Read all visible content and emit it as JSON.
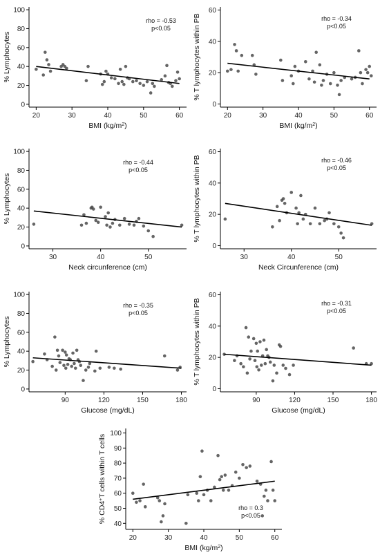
{
  "chart_data": [
    {
      "id": "bmi-lymph",
      "type": "scatter",
      "xlabel": "BMI (kg/m",
      "xlabel_sup": "2",
      "xlabel_end": ")",
      "ylabel": "% Lymphocytes",
      "xlim": [
        18,
        62
      ],
      "ylim": [
        -3,
        103
      ],
      "xticks": [
        20,
        30,
        40,
        50,
        60
      ],
      "yticks": [
        0,
        20,
        40,
        60,
        80,
        100
      ],
      "stat_rho": "rho = -0.53",
      "stat_p": "p<0.05",
      "fit": [
        [
          20,
          40
        ],
        [
          60,
          22
        ]
      ],
      "points": [
        [
          20,
          37
        ],
        [
          22,
          31
        ],
        [
          22.5,
          55
        ],
        [
          23,
          47
        ],
        [
          23.5,
          42
        ],
        [
          24,
          35
        ],
        [
          27,
          40
        ],
        [
          27.5,
          42
        ],
        [
          28,
          40
        ],
        [
          28.5,
          38
        ],
        [
          34,
          25
        ],
        [
          34.5,
          40
        ],
        [
          38,
          32
        ],
        [
          38.5,
          21
        ],
        [
          39,
          24
        ],
        [
          39.5,
          35
        ],
        [
          40,
          32
        ],
        [
          41,
          28
        ],
        [
          42,
          27
        ],
        [
          43,
          22
        ],
        [
          43.5,
          37
        ],
        [
          44,
          24
        ],
        [
          44.5,
          21
        ],
        [
          45,
          40
        ],
        [
          45.5,
          28
        ],
        [
          46,
          27
        ],
        [
          47,
          24
        ],
        [
          48,
          25
        ],
        [
          49,
          22
        ],
        [
          50,
          20
        ],
        [
          51,
          24
        ],
        [
          52,
          12
        ],
        [
          52.5,
          22
        ],
        [
          53,
          19
        ],
        [
          55,
          26
        ],
        [
          56,
          30
        ],
        [
          56.5,
          41
        ],
        [
          57,
          23
        ],
        [
          57.5,
          22
        ],
        [
          58,
          19
        ],
        [
          59,
          25
        ],
        [
          59.5,
          34
        ],
        [
          60,
          27
        ]
      ]
    },
    {
      "id": "bmi-tlymph",
      "type": "scatter",
      "xlabel": "BMI (kg/m",
      "xlabel_sup": "2",
      "xlabel_end": ")",
      "ylabel": "% T lymphocytes within PB",
      "xlim": [
        18,
        62
      ],
      "ylim": [
        -2,
        62
      ],
      "xticks": [
        20,
        30,
        40,
        50,
        60
      ],
      "yticks": [
        0,
        20,
        40,
        60
      ],
      "stat_rho": "rho = -0.34",
      "stat_p": "p<0.05",
      "fit": [
        [
          20,
          26
        ],
        [
          60,
          16
        ]
      ],
      "points": [
        [
          20,
          21
        ],
        [
          21,
          22
        ],
        [
          22,
          38
        ],
        [
          22.5,
          34
        ],
        [
          23,
          21
        ],
        [
          24,
          31
        ],
        [
          27,
          31
        ],
        [
          27.5,
          25
        ],
        [
          28,
          19
        ],
        [
          35,
          28
        ],
        [
          35.5,
          15
        ],
        [
          38,
          18
        ],
        [
          38.5,
          13
        ],
        [
          39,
          24
        ],
        [
          40,
          21
        ],
        [
          42,
          27
        ],
        [
          43,
          16
        ],
        [
          44,
          21
        ],
        [
          44.5,
          14
        ],
        [
          45,
          33
        ],
        [
          46,
          25
        ],
        [
          46.5,
          12
        ],
        [
          47,
          15
        ],
        [
          48,
          19
        ],
        [
          49,
          13
        ],
        [
          50,
          20
        ],
        [
          51,
          12
        ],
        [
          51.5,
          6
        ],
        [
          52,
          15
        ],
        [
          53,
          17
        ],
        [
          55,
          16
        ],
        [
          56,
          17
        ],
        [
          57,
          34
        ],
        [
          57.5,
          20
        ],
        [
          58,
          13
        ],
        [
          59,
          22
        ],
        [
          59.5,
          20
        ],
        [
          60,
          24
        ],
        [
          60.5,
          18
        ]
      ]
    },
    {
      "id": "neck-lymph",
      "type": "scatter",
      "xlabel": "Neck circunference (cm)",
      "ylabel": "% Lymphocytes",
      "xlim": [
        25,
        58
      ],
      "ylim": [
        -3,
        103
      ],
      "xticks": [
        30,
        40,
        50
      ],
      "yticks": [
        0,
        20,
        40,
        60,
        80,
        100
      ],
      "stat_rho": "rho = -0.44",
      "stat_p": "p<0.05",
      "fit": [
        [
          26,
          37
        ],
        [
          57,
          20
        ]
      ],
      "points": [
        [
          26,
          23
        ],
        [
          36,
          22
        ],
        [
          36.5,
          33
        ],
        [
          37,
          24
        ],
        [
          38,
          40
        ],
        [
          38.2,
          41
        ],
        [
          38.5,
          39
        ],
        [
          39,
          27
        ],
        [
          39.5,
          25
        ],
        [
          40,
          41
        ],
        [
          41,
          31
        ],
        [
          41.3,
          22
        ],
        [
          41.6,
          35
        ],
        [
          42,
          20
        ],
        [
          42.5,
          24
        ],
        [
          43,
          28
        ],
        [
          44,
          22
        ],
        [
          45,
          29
        ],
        [
          46,
          23
        ],
        [
          47,
          22
        ],
        [
          47.5,
          26
        ],
        [
          48,
          29
        ],
        [
          49,
          21
        ],
        [
          50,
          16
        ],
        [
          51,
          10
        ],
        [
          57,
          22
        ]
      ]
    },
    {
      "id": "neck-tlymph",
      "type": "scatter",
      "xlabel": "Neck Circunference (cm)",
      "ylabel": "% T lymphocytes within PB",
      "xlim": [
        25,
        58
      ],
      "ylim": [
        -2,
        62
      ],
      "xticks": [
        30,
        40,
        50
      ],
      "yticks": [
        0,
        20,
        40,
        60
      ],
      "stat_rho": "rho = -0.46",
      "stat_p": "p<0.05",
      "fit": [
        [
          26,
          27
        ],
        [
          57,
          13
        ]
      ],
      "points": [
        [
          26,
          17
        ],
        [
          36,
          12
        ],
        [
          37,
          25
        ],
        [
          37.5,
          16
        ],
        [
          38,
          29
        ],
        [
          38.3,
          30
        ],
        [
          38.6,
          27
        ],
        [
          39,
          21
        ],
        [
          40,
          34
        ],
        [
          41,
          24
        ],
        [
          41.3,
          14
        ],
        [
          41.6,
          21
        ],
        [
          42,
          32
        ],
        [
          42.5,
          17
        ],
        [
          43,
          20
        ],
        [
          44,
          14
        ],
        [
          45,
          24
        ],
        [
          46,
          14
        ],
        [
          47,
          16
        ],
        [
          47.5,
          17
        ],
        [
          48,
          21
        ],
        [
          49,
          14
        ],
        [
          50,
          12
        ],
        [
          50.5,
          8
        ],
        [
          51,
          5
        ],
        [
          57,
          14
        ]
      ]
    },
    {
      "id": "glucose-lymph",
      "type": "scatter",
      "xlabel": "Glucose (mg/dL)",
      "ylabel": "% Lymphocytes",
      "xlim": [
        62,
        184
      ],
      "ylim": [
        -3,
        103
      ],
      "xticks": [
        90,
        120,
        150,
        180
      ],
      "yticks": [
        0,
        20,
        40,
        60,
        80,
        100
      ],
      "stat_rho": "rho = -0.35",
      "stat_p": "p<0.05",
      "fit": [
        [
          65,
          33
        ],
        [
          180,
          22
        ]
      ],
      "points": [
        [
          65,
          29
        ],
        [
          74,
          37
        ],
        [
          76,
          31
        ],
        [
          80,
          24
        ],
        [
          82,
          55
        ],
        [
          83,
          20
        ],
        [
          84,
          41
        ],
        [
          85,
          35
        ],
        [
          86,
          28
        ],
        [
          88,
          41
        ],
        [
          89,
          25
        ],
        [
          90,
          39
        ],
        [
          90.5,
          22
        ],
        [
          91,
          36
        ],
        [
          92,
          26
        ],
        [
          93,
          32
        ],
        [
          94,
          31
        ],
        [
          95,
          24
        ],
        [
          96,
          38
        ],
        [
          97,
          27
        ],
        [
          98,
          22
        ],
        [
          99,
          41
        ],
        [
          100,
          31
        ],
        [
          101,
          29
        ],
        [
          102,
          25
        ],
        [
          104,
          9
        ],
        [
          106,
          20
        ],
        [
          108,
          23
        ],
        [
          109,
          27
        ],
        [
          113,
          19
        ],
        [
          114,
          40
        ],
        [
          117,
          22
        ],
        [
          124,
          23
        ],
        [
          128,
          22
        ],
        [
          133,
          21
        ],
        [
          167,
          35
        ],
        [
          177,
          20
        ],
        [
          179,
          23
        ]
      ]
    },
    {
      "id": "glucose-tlymph",
      "type": "scatter",
      "xlabel": "Glucose (mg/dL)",
      "ylabel": "% T lymphocytes within PB",
      "xlim": [
        62,
        184
      ],
      "ylim": [
        -2,
        62
      ],
      "xticks": [
        90,
        120,
        150,
        180
      ],
      "yticks": [
        0,
        20,
        40,
        60
      ],
      "stat_rho": "rho = -0.31",
      "stat_p": "p<0.05",
      "fit": [
        [
          65,
          22
        ],
        [
          180,
          15
        ]
      ],
      "points": [
        [
          65,
          22
        ],
        [
          73,
          18
        ],
        [
          75,
          21
        ],
        [
          78,
          16
        ],
        [
          80,
          14
        ],
        [
          82,
          39
        ],
        [
          83,
          10
        ],
        [
          84,
          33
        ],
        [
          85,
          19
        ],
        [
          86,
          24
        ],
        [
          88,
          32
        ],
        [
          89,
          18
        ],
        [
          90,
          29
        ],
        [
          90.5,
          14
        ],
        [
          91,
          24
        ],
        [
          92,
          12
        ],
        [
          93,
          30
        ],
        [
          94,
          15
        ],
        [
          95,
          21
        ],
        [
          96,
          31
        ],
        [
          97,
          16
        ],
        [
          98,
          25
        ],
        [
          99,
          21
        ],
        [
          100,
          20
        ],
        [
          101,
          17
        ],
        [
          103,
          5
        ],
        [
          104,
          15
        ],
        [
          106,
          10
        ],
        [
          108,
          28
        ],
        [
          109,
          27
        ],
        [
          111,
          15
        ],
        [
          113,
          13
        ],
        [
          116,
          9
        ],
        [
          119,
          15
        ],
        [
          166,
          26
        ],
        [
          176,
          16
        ],
        [
          180,
          16
        ]
      ]
    },
    {
      "id": "bmi-cd4",
      "type": "scatter",
      "xlabel": "BMI (kg/m",
      "xlabel_sup": "2",
      "xlabel_end": ")",
      "ylabel": "% CD4",
      "ylabel_sup": "+",
      "ylabel_end": "T cells within T cells",
      "xlim": [
        18,
        62
      ],
      "ylim": [
        36,
        103
      ],
      "xticks": [
        20,
        30,
        40,
        50,
        60
      ],
      "yticks": [
        40,
        50,
        60,
        70,
        80,
        90,
        100
      ],
      "stat_rho": "rho = 0.3",
      "stat_p": "p<0.05",
      "fit": [
        [
          20,
          56
        ],
        [
          60,
          68
        ]
      ],
      "points": [
        [
          20,
          60
        ],
        [
          21,
          54
        ],
        [
          22,
          55
        ],
        [
          23,
          66
        ],
        [
          23.5,
          51
        ],
        [
          27,
          57
        ],
        [
          27.5,
          55
        ],
        [
          28,
          41
        ],
        [
          28.5,
          45
        ],
        [
          29,
          53
        ],
        [
          35,
          40
        ],
        [
          35.5,
          59
        ],
        [
          38,
          60
        ],
        [
          38.5,
          55
        ],
        [
          39,
          71
        ],
        [
          39.5,
          88
        ],
        [
          40,
          59
        ],
        [
          41,
          62
        ],
        [
          42,
          55
        ],
        [
          43,
          64
        ],
        [
          44,
          85
        ],
        [
          44.5,
          69
        ],
        [
          45,
          71
        ],
        [
          45.5,
          62
        ],
        [
          46,
          72
        ],
        [
          47,
          62
        ],
        [
          48,
          65
        ],
        [
          49,
          74
        ],
        [
          50,
          70
        ],
        [
          51,
          79
        ],
        [
          52,
          77
        ],
        [
          53,
          78
        ],
        [
          55,
          68
        ],
        [
          56,
          66
        ],
        [
          56.5,
          45
        ],
        [
          57,
          58
        ],
        [
          57.5,
          62
        ],
        [
          58,
          55
        ],
        [
          59,
          81
        ],
        [
          59.5,
          62
        ],
        [
          60,
          55
        ]
      ]
    }
  ]
}
